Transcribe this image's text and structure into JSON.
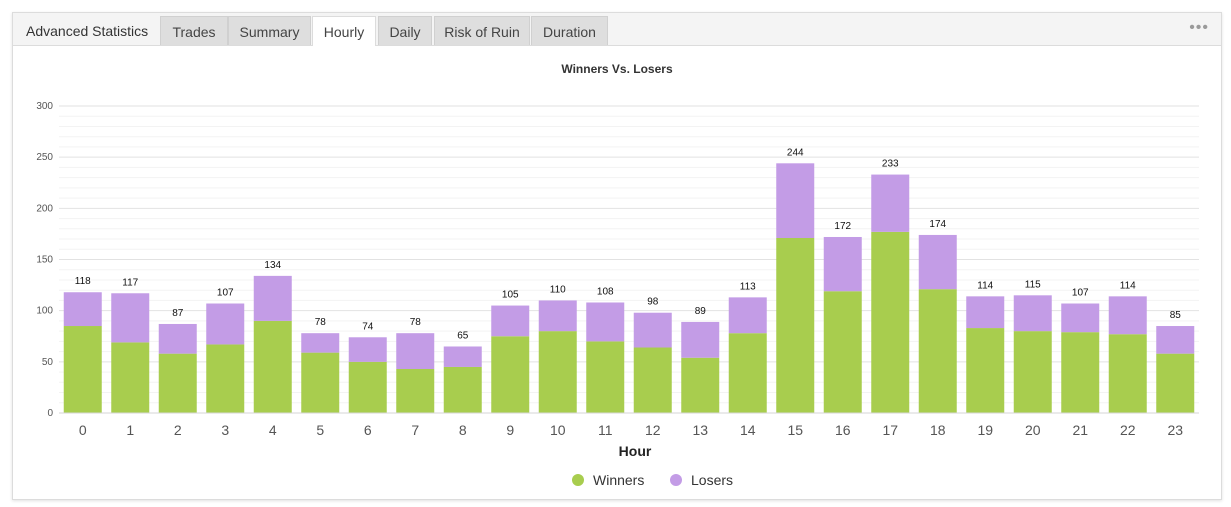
{
  "header": {
    "title": "Advanced Statistics",
    "tabs": [
      {
        "label": "Trades"
      },
      {
        "label": "Summary"
      },
      {
        "label": "Hourly",
        "active": true
      },
      {
        "label": "Daily"
      },
      {
        "label": "Risk of Ruin"
      },
      {
        "label": "Duration"
      }
    ],
    "more_icon": "more-horizontal-icon"
  },
  "colors": {
    "winners": "#a8cd4e",
    "losers": "#c39ce6"
  },
  "chart_data": {
    "type": "bar",
    "stacked": true,
    "title": "Winners Vs. Losers",
    "xlabel": "Hour",
    "ylabel": "",
    "ylim": [
      0,
      300
    ],
    "yticks": [
      0,
      50,
      100,
      150,
      200,
      250,
      300
    ],
    "grid": true,
    "legend_position": "bottom",
    "categories": [
      "0",
      "1",
      "2",
      "3",
      "4",
      "5",
      "6",
      "7",
      "8",
      "9",
      "10",
      "11",
      "12",
      "13",
      "14",
      "15",
      "16",
      "17",
      "18",
      "19",
      "20",
      "21",
      "22",
      "23"
    ],
    "series": [
      {
        "name": "Winners",
        "values": [
          85,
          69,
          58,
          67,
          90,
          59,
          50,
          43,
          45,
          75,
          80,
          70,
          64,
          54,
          78,
          171,
          119,
          177,
          121,
          83,
          80,
          79,
          77,
          58
        ]
      },
      {
        "name": "Losers",
        "values": [
          33,
          48,
          29,
          40,
          44,
          19,
          24,
          35,
          20,
          30,
          30,
          38,
          34,
          35,
          35,
          73,
          53,
          56,
          53,
          31,
          35,
          28,
          37,
          27
        ]
      }
    ],
    "totals": [
      118,
      117,
      87,
      107,
      134,
      78,
      74,
      78,
      65,
      105,
      110,
      108,
      98,
      89,
      113,
      244,
      172,
      233,
      174,
      114,
      115,
      107,
      114,
      85
    ]
  }
}
